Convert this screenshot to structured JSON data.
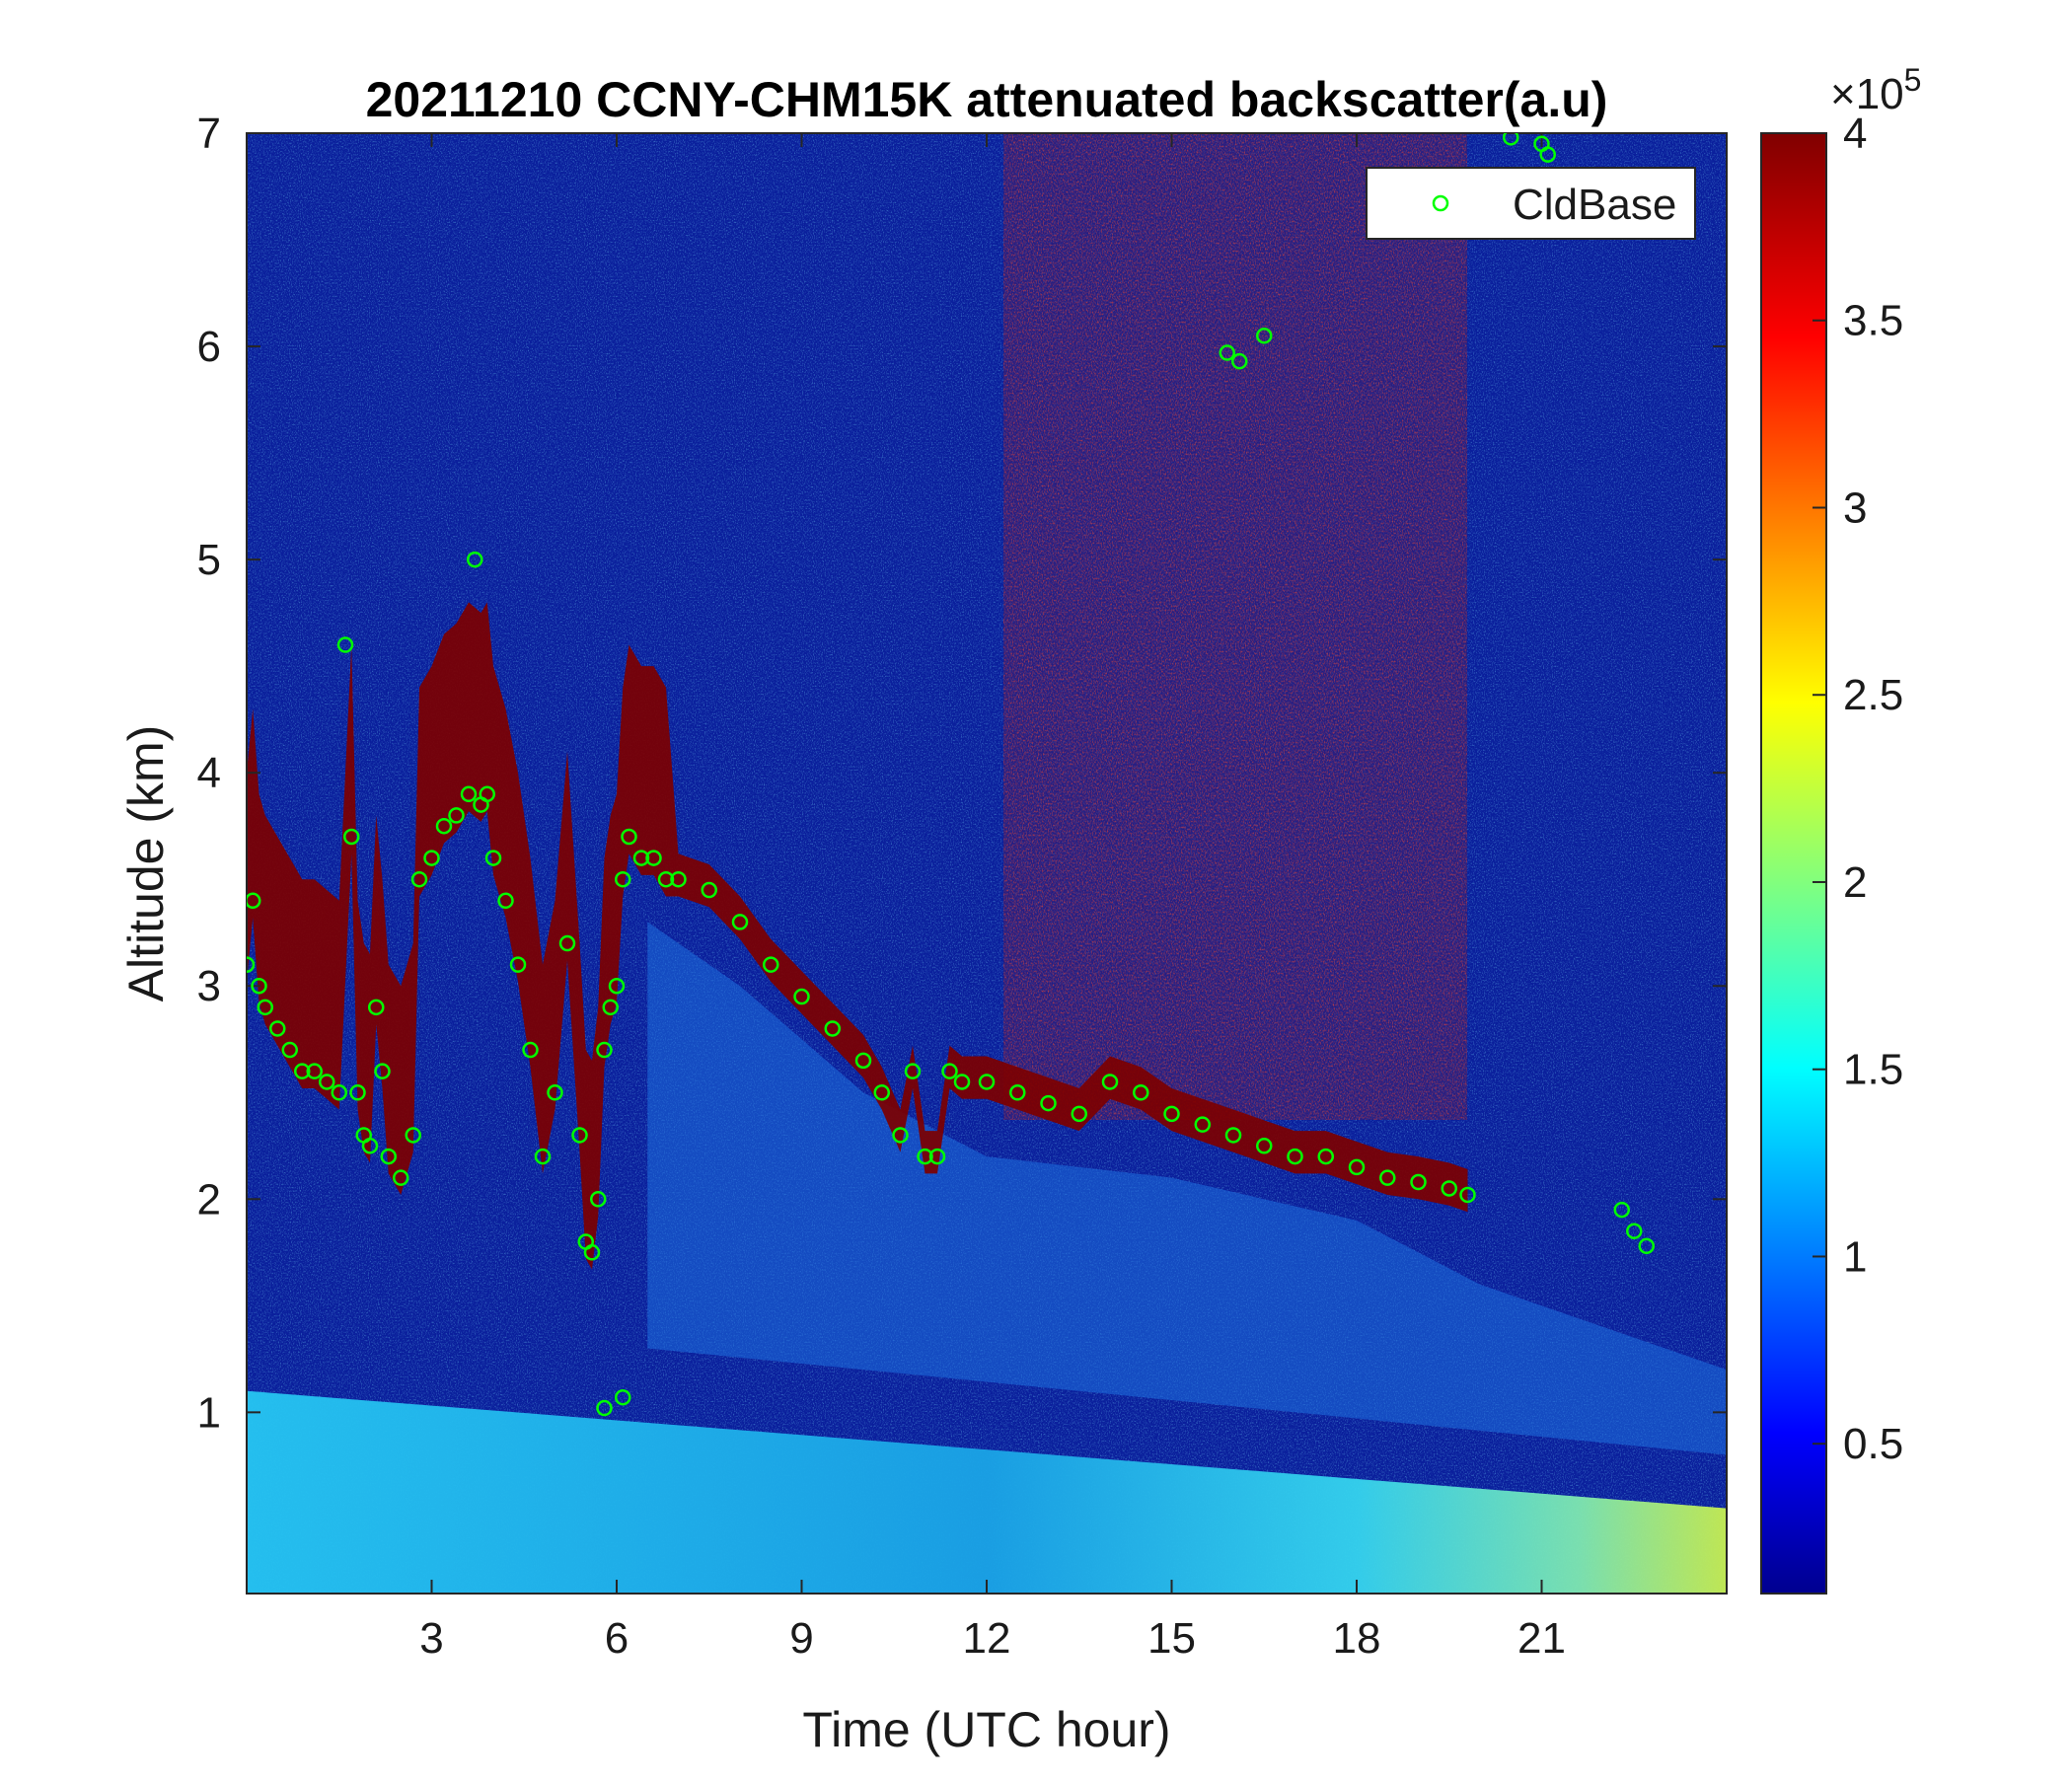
{
  "chart_data": {
    "type": "heatmap",
    "title": "20211210 CCNY-CHM15K attenuated backscatter(a.u)",
    "xlabel": "Time (UTC hour)",
    "ylabel": "Altitude (km)",
    "xlim": [
      0,
      24
    ],
    "ylim": [
      0.15,
      7
    ],
    "xticks": [
      3,
      6,
      9,
      12,
      15,
      18,
      21
    ],
    "xtick_labels": [
      "3",
      "6",
      "9",
      "12",
      "15",
      "18",
      "21"
    ],
    "yticks": [
      1,
      2,
      3,
      4,
      5,
      6,
      7
    ],
    "ytick_labels": [
      "1",
      "2",
      "3",
      "4",
      "5",
      "6",
      "7"
    ],
    "colorbar": {
      "colormap": "jet",
      "range": [
        10000,
        400000
      ],
      "ticks": [
        0.5,
        1,
        1.5,
        2,
        2.5,
        3,
        3.5,
        4
      ],
      "tick_labels": [
        "0.5",
        "1",
        "1.5",
        "2",
        "2.5",
        "3",
        "3.5",
        "4"
      ],
      "exponent_prefix": "×10",
      "exponent": "5"
    },
    "legend": {
      "placement": "top-right",
      "entries": [
        {
          "name": "CldBase",
          "marker": "circle",
          "color": "#00ff00"
        }
      ]
    },
    "series": [
      {
        "name": "CldBase",
        "marker": "circle",
        "color": "#00ff00",
        "points": [
          [
            0.0,
            3.1
          ],
          [
            0.1,
            3.4
          ],
          [
            0.2,
            3.0
          ],
          [
            0.3,
            2.9
          ],
          [
            0.5,
            2.8
          ],
          [
            0.7,
            2.7
          ],
          [
            0.9,
            2.6
          ],
          [
            1.1,
            2.6
          ],
          [
            1.3,
            2.55
          ],
          [
            1.5,
            2.5
          ],
          [
            1.6,
            4.6
          ],
          [
            1.7,
            3.7
          ],
          [
            1.8,
            2.5
          ],
          [
            1.9,
            2.3
          ],
          [
            2.0,
            2.25
          ],
          [
            2.1,
            2.9
          ],
          [
            2.2,
            2.6
          ],
          [
            2.3,
            2.2
          ],
          [
            2.5,
            2.1
          ],
          [
            2.7,
            2.3
          ],
          [
            2.8,
            3.5
          ],
          [
            3.0,
            3.6
          ],
          [
            3.2,
            3.75
          ],
          [
            3.4,
            3.8
          ],
          [
            3.6,
            3.9
          ],
          [
            3.7,
            5.0
          ],
          [
            3.8,
            3.85
          ],
          [
            3.9,
            3.9
          ],
          [
            4.0,
            3.6
          ],
          [
            4.2,
            3.4
          ],
          [
            4.4,
            3.1
          ],
          [
            4.6,
            2.7
          ],
          [
            4.8,
            2.2
          ],
          [
            5.0,
            2.5
          ],
          [
            5.2,
            3.2
          ],
          [
            5.4,
            2.3
          ],
          [
            5.5,
            1.8
          ],
          [
            5.6,
            1.75
          ],
          [
            5.7,
            2.0
          ],
          [
            5.8,
            2.7
          ],
          [
            5.9,
            2.9
          ],
          [
            6.0,
            3.0
          ],
          [
            6.1,
            3.5
          ],
          [
            6.2,
            3.7
          ],
          [
            6.4,
            3.6
          ],
          [
            6.6,
            3.6
          ],
          [
            6.8,
            3.5
          ],
          [
            7.0,
            3.5
          ],
          [
            7.5,
            3.45
          ],
          [
            8.0,
            3.3
          ],
          [
            8.5,
            3.1
          ],
          [
            9.0,
            2.95
          ],
          [
            9.5,
            2.8
          ],
          [
            10.0,
            2.65
          ],
          [
            10.3,
            2.5
          ],
          [
            10.6,
            2.3
          ],
          [
            10.8,
            2.6
          ],
          [
            11.0,
            2.2
          ],
          [
            11.2,
            2.2
          ],
          [
            11.4,
            2.6
          ],
          [
            11.6,
            2.55
          ],
          [
            12.0,
            2.55
          ],
          [
            12.5,
            2.5
          ],
          [
            13.0,
            2.45
          ],
          [
            13.5,
            2.4
          ],
          [
            14.0,
            2.55
          ],
          [
            14.5,
            2.5
          ],
          [
            15.0,
            2.4
          ],
          [
            15.5,
            2.35
          ],
          [
            16.0,
            2.3
          ],
          [
            16.5,
            2.25
          ],
          [
            17.0,
            2.2
          ],
          [
            17.5,
            2.2
          ],
          [
            18.0,
            2.15
          ],
          [
            18.5,
            2.1
          ],
          [
            19.0,
            2.08
          ],
          [
            19.5,
            2.05
          ],
          [
            19.8,
            2.02
          ],
          [
            15.9,
            5.97
          ],
          [
            16.1,
            5.93
          ],
          [
            16.5,
            6.05
          ],
          [
            20.5,
            6.98
          ],
          [
            21.0,
            6.95
          ],
          [
            21.1,
            6.9
          ],
          [
            22.3,
            1.95
          ],
          [
            22.5,
            1.85
          ],
          [
            22.7,
            1.78
          ],
          [
            5.8,
            1.02
          ],
          [
            6.1,
            1.07
          ]
        ]
      }
    ],
    "features": {
      "surface_aerosol_layer_top_km": 1.1,
      "cloud_layer_start_hour": 0,
      "cloud_layer_end_hour": 19.8,
      "high_noise_region_hours": [
        12.3,
        19.8
      ]
    }
  }
}
